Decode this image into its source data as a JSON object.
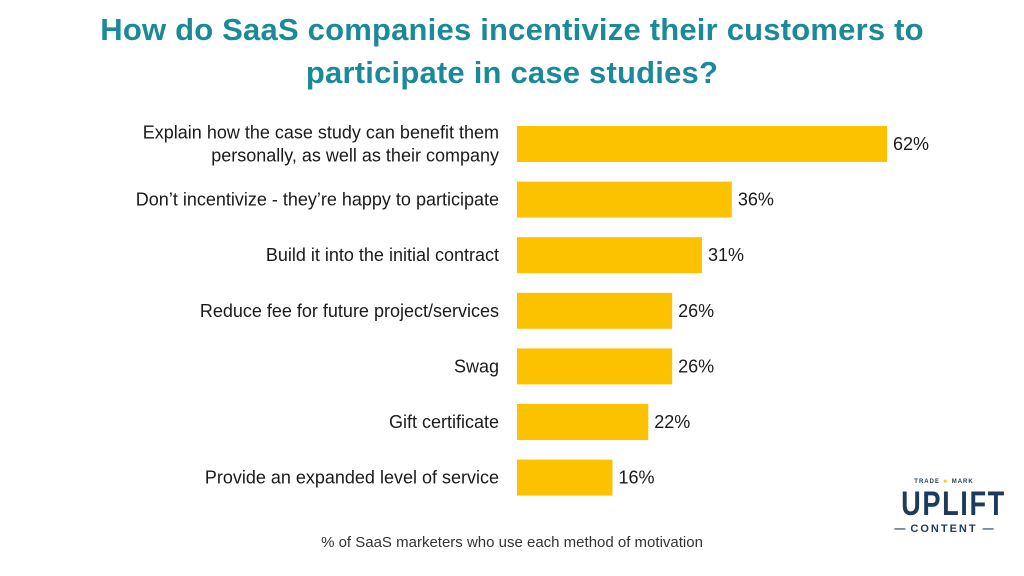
{
  "title": {
    "line1": "How do SaaS companies incentivize their customers to",
    "line2": "participate in case studies?"
  },
  "caption": "% of SaaS marketers who use each method of motivation",
  "logo": {
    "trademark_left": "TRADE",
    "trademark_right": "MARK",
    "brand": "UPLIFT",
    "sub": "CONTENT"
  },
  "colors": {
    "title": "#1a8a99",
    "bar": "#fcc200",
    "logo": "#1e3a5c"
  },
  "chart_data": {
    "type": "bar",
    "orientation": "horizontal",
    "title": "How do SaaS companies incentivize their customers to participate in case studies?",
    "xlabel": "% of SaaS marketers who use each method of motivation",
    "categories": [
      [
        "Explain how the case study can benefit them",
        "personally, as well as their company"
      ],
      [
        "Don’t incentivize - they’re happy to participate"
      ],
      [
        "Build it into the initial contract"
      ],
      [
        "Reduce fee for future project/services"
      ],
      [
        "Swag"
      ],
      [
        "Gift certificate"
      ],
      [
        "Provide an expanded level of service"
      ]
    ],
    "values": [
      62,
      36,
      31,
      26,
      26,
      22,
      16
    ],
    "value_labels": [
      "62%",
      "36%",
      "31%",
      "26%",
      "26%",
      "22%",
      "16%"
    ],
    "xlim": [
      0,
      62
    ],
    "grid": false,
    "legend": "none"
  }
}
